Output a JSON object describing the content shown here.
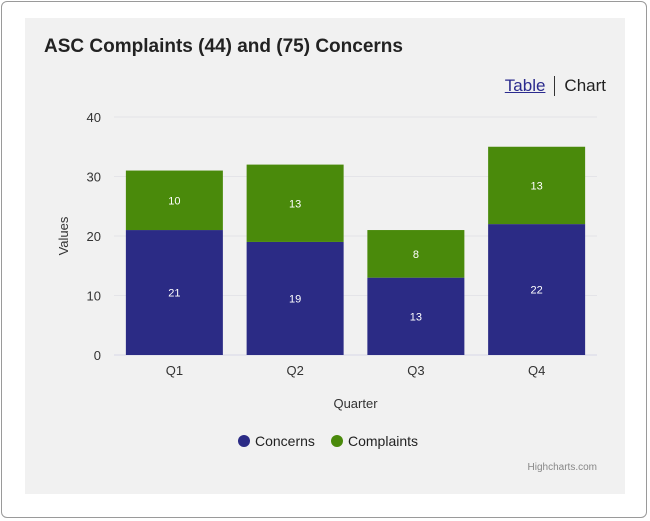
{
  "title": "ASC Complaints (44) and (75) Concerns",
  "toggle": {
    "table_label": "Table",
    "chart_label": "Chart"
  },
  "credits": "Highcharts.com",
  "colors": {
    "concerns": "#2b2b85",
    "complaints": "#4a8a0b",
    "panel": "#f1f1f1"
  },
  "chart_data": {
    "type": "bar",
    "stacked": true,
    "title": "ASC Complaints (44) and (75) Concerns",
    "categories": [
      "Q1",
      "Q2",
      "Q3",
      "Q4"
    ],
    "series": [
      {
        "name": "Concerns",
        "values": [
          21,
          19,
          13,
          22
        ],
        "color": "#2b2b85"
      },
      {
        "name": "Complaints",
        "values": [
          10,
          13,
          8,
          13
        ],
        "color": "#4a8a0b"
      }
    ],
    "xlabel": "Quarter",
    "ylabel": "Values",
    "ylim": [
      0,
      40
    ],
    "yticks": [
      0,
      10,
      20,
      30,
      40
    ],
    "grid": true,
    "legend": "bottom-center"
  }
}
